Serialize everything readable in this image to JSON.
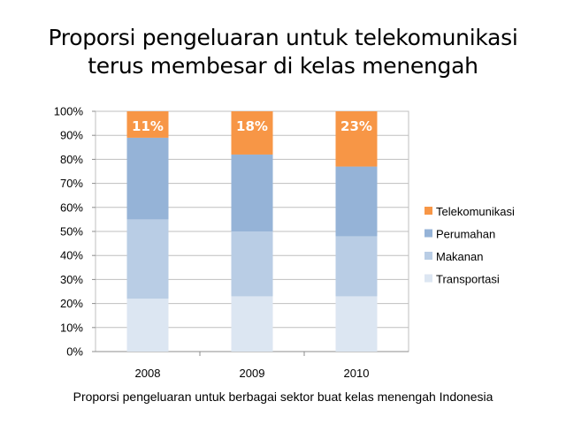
{
  "title_line_1": "Proporsi pengeluaran untuk telekomunikasi",
  "title_line_2": "terus membesar di kelas menengah",
  "caption": "Proporsi pengeluaran untuk berbagai sektor buat kelas menengah Indonesia",
  "chart_data": {
    "type": "bar",
    "stacked": true,
    "normalized_percent": true,
    "categories": [
      "2008",
      "2009",
      "2010"
    ],
    "series": [
      {
        "name": "Transportasi",
        "values": [
          22,
          23,
          23
        ],
        "color": "#dce6f2"
      },
      {
        "name": "Makanan",
        "values": [
          33,
          27,
          25
        ],
        "color": "#b9cde5"
      },
      {
        "name": "Perumahan",
        "values": [
          34,
          32,
          29
        ],
        "color": "#95b3d7"
      },
      {
        "name": "Telekomunikasi",
        "values": [
          11,
          18,
          23
        ],
        "color": "#f79646",
        "labels": [
          "11%",
          "18%",
          "23%"
        ]
      }
    ],
    "y_ticks": [
      "0%",
      "10%",
      "20%",
      "30%",
      "40%",
      "50%",
      "60%",
      "70%",
      "80%",
      "90%",
      "100%"
    ],
    "ylim": [
      0,
      100
    ],
    "grid": true,
    "legend_order": [
      "Telekomunikasi",
      "Perumahan",
      "Makanan",
      "Transportasi"
    ],
    "legend_position": "right",
    "label_color": "#ffffff"
  }
}
